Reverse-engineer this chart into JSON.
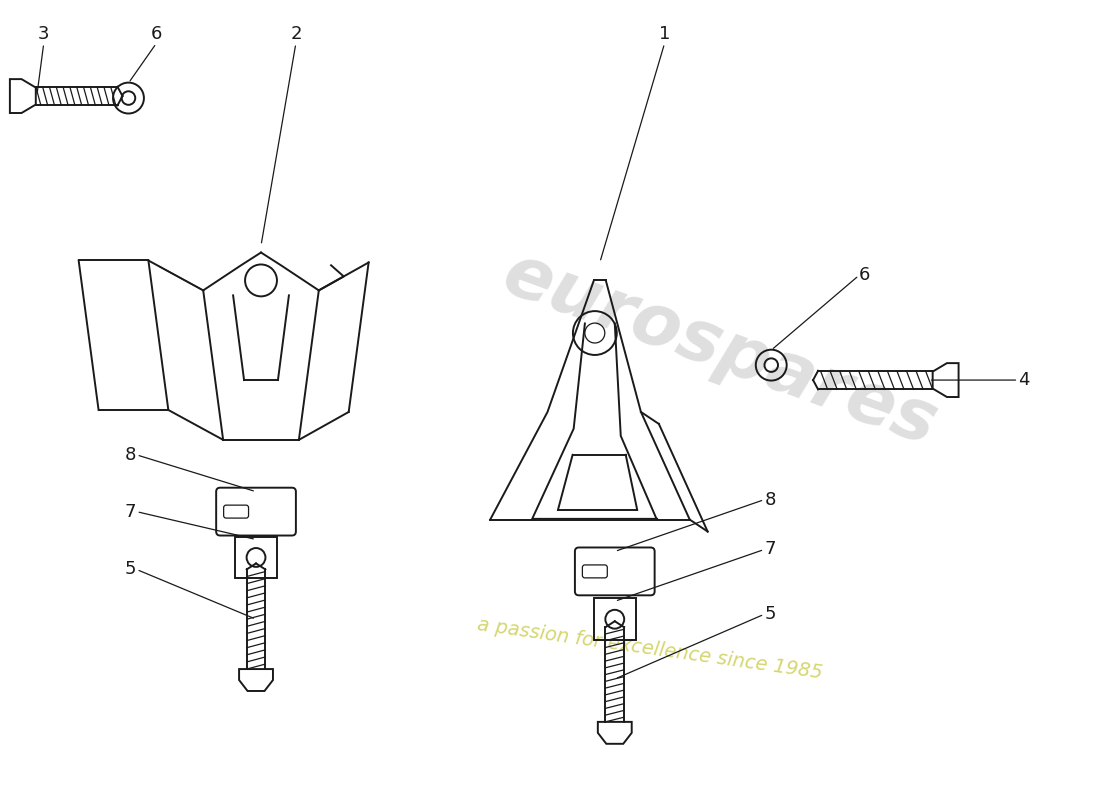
{
  "bg_color": "#ffffff",
  "line_color": "#1a1a1a",
  "figsize": [
    11.0,
    8.0
  ],
  "dpi": 100,
  "watermark1": "eurospares",
  "watermark2": "a passion for excellence since 1985",
  "wm_gray": "#b8b8b8",
  "wm_yellow": "#c8c840"
}
